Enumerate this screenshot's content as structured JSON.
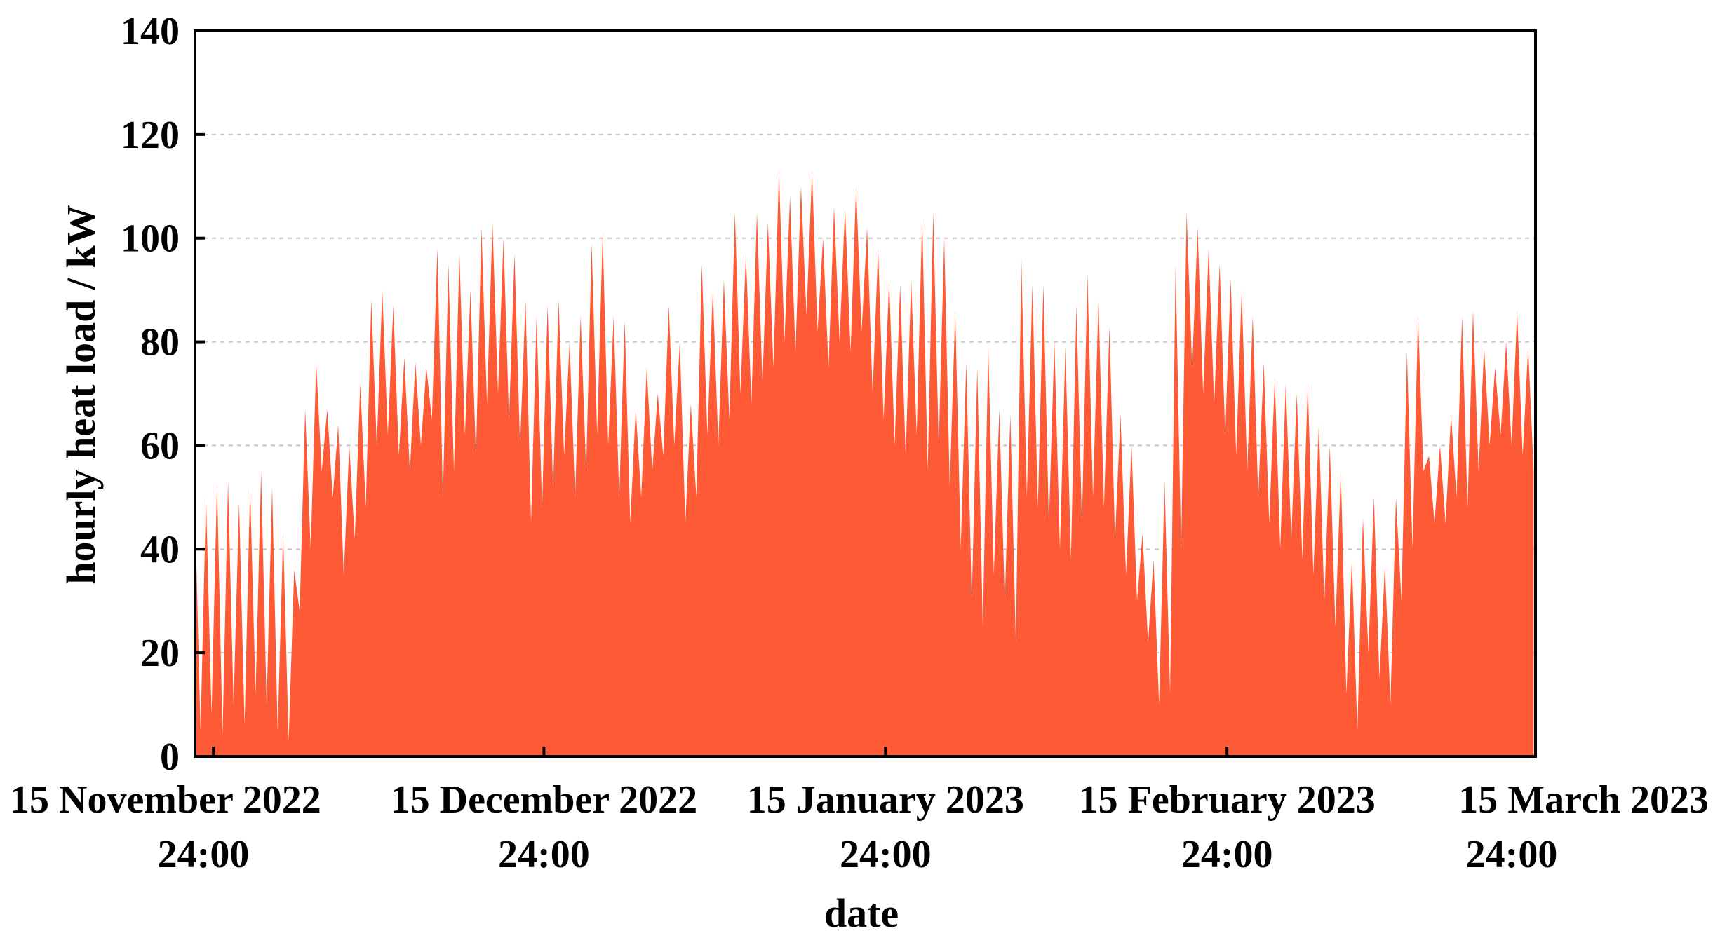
{
  "chart_data": {
    "type": "area",
    "y_label": "hourly heat load / kW",
    "x_label": "date",
    "color": "#ff5a36",
    "grid": true,
    "ylim": [
      0,
      140
    ],
    "yticks": [
      0,
      20,
      40,
      60,
      80,
      100,
      120,
      140
    ],
    "xlim": [
      "2022-11-14T08:00",
      "2023-03-16T00:00"
    ],
    "xticks": [
      {
        "value": "2022-11-16T00:00",
        "label": [
          "15 November 2022",
          "24:00"
        ]
      },
      {
        "value": "2022-12-16T00:00",
        "label": [
          "15 December 2022",
          "24:00"
        ]
      },
      {
        "value": "2023-01-16T00:00",
        "label": [
          "15 January 2023",
          "24:00"
        ]
      },
      {
        "value": "2023-02-16T00:00",
        "label": [
          "15 February 2023",
          "24:00"
        ]
      },
      {
        "value": "2023-03-16T00:00",
        "label": [
          "15 March 2023",
          "24:00"
        ]
      }
    ],
    "x": [
      "2022-11-14T08:00",
      "2022-11-14T20:00",
      "2022-11-15T08:00",
      "2022-11-15T20:00",
      "2022-11-16T08:00",
      "2022-11-16T20:00",
      "2022-11-17T08:00",
      "2022-11-17T20:00",
      "2022-11-18T08:00",
      "2022-11-18T20:00",
      "2022-11-19T08:00",
      "2022-11-19T20:00",
      "2022-11-20T08:00",
      "2022-11-20T20:00",
      "2022-11-21T08:00",
      "2022-11-21T20:00",
      "2022-11-22T08:00",
      "2022-11-22T20:00",
      "2022-11-23T08:00",
      "2022-11-23T20:00",
      "2022-11-24T08:00",
      "2022-11-24T20:00",
      "2022-11-25T08:00",
      "2022-11-25T20:00",
      "2022-11-26T08:00",
      "2022-11-26T20:00",
      "2022-11-27T08:00",
      "2022-11-27T20:00",
      "2022-11-28T08:00",
      "2022-11-28T20:00",
      "2022-11-29T08:00",
      "2022-11-29T20:00",
      "2022-11-30T08:00",
      "2022-11-30T20:00",
      "2022-12-01T08:00",
      "2022-12-01T20:00",
      "2022-12-02T08:00",
      "2022-12-02T20:00",
      "2022-12-03T08:00",
      "2022-12-03T20:00",
      "2022-12-04T08:00",
      "2022-12-04T20:00",
      "2022-12-05T08:00",
      "2022-12-05T20:00",
      "2022-12-06T08:00",
      "2022-12-06T20:00",
      "2022-12-07T08:00",
      "2022-12-07T20:00",
      "2022-12-08T08:00",
      "2022-12-08T20:00",
      "2022-12-09T08:00",
      "2022-12-09T20:00",
      "2022-12-10T08:00",
      "2022-12-10T20:00",
      "2022-12-11T08:00",
      "2022-12-11T20:00",
      "2022-12-12T08:00",
      "2022-12-12T20:00",
      "2022-12-13T08:00",
      "2022-12-13T20:00",
      "2022-12-14T08:00",
      "2022-12-14T20:00",
      "2022-12-15T08:00",
      "2022-12-15T20:00",
      "2022-12-16T08:00",
      "2022-12-16T20:00",
      "2022-12-17T08:00",
      "2022-12-17T20:00",
      "2022-12-18T08:00",
      "2022-12-18T20:00",
      "2022-12-19T08:00",
      "2022-12-19T20:00",
      "2022-12-20T08:00",
      "2022-12-20T20:00",
      "2022-12-21T08:00",
      "2022-12-21T20:00",
      "2022-12-22T08:00",
      "2022-12-22T20:00",
      "2022-12-23T08:00",
      "2022-12-23T20:00",
      "2022-12-24T08:00",
      "2022-12-24T20:00",
      "2022-12-25T08:00",
      "2022-12-25T20:00",
      "2022-12-26T08:00",
      "2022-12-26T20:00",
      "2022-12-27T08:00",
      "2022-12-27T20:00",
      "2022-12-28T08:00",
      "2022-12-28T20:00",
      "2022-12-29T08:00",
      "2022-12-29T20:00",
      "2022-12-30T08:00",
      "2022-12-30T20:00",
      "2022-12-31T08:00",
      "2022-12-31T20:00",
      "2023-01-01T08:00",
      "2023-01-01T20:00",
      "2023-01-02T08:00",
      "2023-01-02T20:00",
      "2023-01-03T08:00",
      "2023-01-03T20:00",
      "2023-01-04T08:00",
      "2023-01-04T20:00",
      "2023-01-05T08:00",
      "2023-01-05T20:00",
      "2023-01-06T08:00",
      "2023-01-06T20:00",
      "2023-01-07T08:00",
      "2023-01-07T20:00",
      "2023-01-08T08:00",
      "2023-01-08T20:00",
      "2023-01-09T08:00",
      "2023-01-09T20:00",
      "2023-01-10T08:00",
      "2023-01-10T20:00",
      "2023-01-11T08:00",
      "2023-01-11T20:00",
      "2023-01-12T08:00",
      "2023-01-12T20:00",
      "2023-01-13T08:00",
      "2023-01-13T20:00",
      "2023-01-14T08:00",
      "2023-01-14T20:00",
      "2023-01-15T08:00",
      "2023-01-15T20:00",
      "2023-01-16T08:00",
      "2023-01-16T20:00",
      "2023-01-17T08:00",
      "2023-01-17T20:00",
      "2023-01-18T08:00",
      "2023-01-18T20:00",
      "2023-01-19T08:00",
      "2023-01-19T20:00",
      "2023-01-20T08:00",
      "2023-01-20T20:00",
      "2023-01-21T08:00",
      "2023-01-21T20:00",
      "2023-01-22T08:00",
      "2023-01-22T20:00",
      "2023-01-23T08:00",
      "2023-01-23T20:00",
      "2023-01-24T08:00",
      "2023-01-24T20:00",
      "2023-01-25T08:00",
      "2023-01-25T20:00",
      "2023-01-26T08:00",
      "2023-01-26T20:00",
      "2023-01-27T08:00",
      "2023-01-27T20:00",
      "2023-01-28T08:00",
      "2023-01-28T20:00",
      "2023-01-29T08:00",
      "2023-01-29T20:00",
      "2023-01-30T08:00",
      "2023-01-30T20:00",
      "2023-01-31T08:00",
      "2023-01-31T20:00",
      "2023-02-01T08:00",
      "2023-02-01T20:00",
      "2023-02-02T08:00",
      "2023-02-02T20:00",
      "2023-02-03T08:00",
      "2023-02-03T20:00",
      "2023-02-04T08:00",
      "2023-02-04T20:00",
      "2023-02-05T08:00",
      "2023-02-05T20:00",
      "2023-02-06T08:00",
      "2023-02-06T20:00",
      "2023-02-07T08:00",
      "2023-02-07T20:00",
      "2023-02-08T08:00",
      "2023-02-08T20:00",
      "2023-02-09T08:00",
      "2023-02-09T20:00",
      "2023-02-10T08:00",
      "2023-02-10T20:00",
      "2023-02-11T08:00",
      "2023-02-11T20:00",
      "2023-02-12T08:00",
      "2023-02-12T20:00",
      "2023-02-13T08:00",
      "2023-02-13T20:00",
      "2023-02-14T08:00",
      "2023-02-14T20:00",
      "2023-02-15T08:00",
      "2023-02-15T20:00",
      "2023-02-16T08:00",
      "2023-02-16T20:00",
      "2023-02-17T08:00",
      "2023-02-17T20:00",
      "2023-02-18T08:00",
      "2023-02-18T20:00",
      "2023-02-19T08:00",
      "2023-02-19T20:00",
      "2023-02-20T08:00",
      "2023-02-20T20:00",
      "2023-02-21T08:00",
      "2023-02-21T20:00",
      "2023-02-22T08:00",
      "2023-02-22T20:00",
      "2023-02-23T08:00",
      "2023-02-23T20:00",
      "2023-02-24T08:00",
      "2023-02-24T20:00",
      "2023-02-25T08:00",
      "2023-02-25T20:00",
      "2023-02-26T08:00",
      "2023-02-26T20:00",
      "2023-02-27T08:00",
      "2023-02-27T20:00",
      "2023-02-28T08:00",
      "2023-02-28T20:00",
      "2023-03-01T08:00",
      "2023-03-01T20:00",
      "2023-03-02T08:00",
      "2023-03-02T20:00",
      "2023-03-03T08:00",
      "2023-03-03T20:00",
      "2023-03-04T08:00",
      "2023-03-04T20:00",
      "2023-03-05T08:00",
      "2023-03-05T20:00",
      "2023-03-06T08:00",
      "2023-03-06T20:00",
      "2023-03-07T08:00",
      "2023-03-07T20:00",
      "2023-03-08T08:00",
      "2023-03-08T20:00",
      "2023-03-09T08:00",
      "2023-03-09T20:00",
      "2023-03-10T08:00",
      "2023-03-10T20:00",
      "2023-03-11T08:00",
      "2023-03-11T20:00",
      "2023-03-12T08:00",
      "2023-03-12T20:00",
      "2023-03-13T08:00",
      "2023-03-13T20:00",
      "2023-03-14T08:00",
      "2023-03-14T20:00",
      "2023-03-15T08:00",
      "2023-03-15T20:00"
    ],
    "values": [
      48,
      5,
      50,
      8,
      53,
      4,
      53,
      10,
      49,
      6,
      52,
      12,
      55,
      10,
      52,
      5,
      43,
      3,
      36,
      28,
      67,
      40,
      76,
      55,
      67,
      50,
      64,
      35,
      60,
      42,
      72,
      48,
      88,
      60,
      90,
      62,
      87,
      58,
      77,
      55,
      76,
      60,
      75,
      65,
      98,
      50,
      95,
      55,
      97,
      62,
      90,
      58,
      102,
      68,
      103,
      70,
      100,
      65,
      97,
      60,
      88,
      45,
      85,
      48,
      87,
      52,
      88,
      58,
      80,
      50,
      85,
      55,
      99,
      62,
      101,
      60,
      85,
      50,
      84,
      45,
      67,
      50,
      75,
      55,
      70,
      58,
      87,
      60,
      80,
      45,
      68,
      50,
      95,
      62,
      90,
      60,
      92,
      65,
      105,
      70,
      97,
      68,
      105,
      72,
      103,
      75,
      113,
      80,
      108,
      78,
      110,
      85,
      113,
      82,
      100,
      75,
      106,
      80,
      106,
      78,
      110,
      82,
      102,
      70,
      98,
      65,
      92,
      60,
      91,
      58,
      92,
      62,
      104,
      55,
      105,
      60,
      100,
      52,
      86,
      40,
      76,
      30,
      75,
      25,
      79,
      35,
      67,
      30,
      66,
      22,
      96,
      50,
      91,
      48,
      91,
      45,
      80,
      40,
      79,
      38,
      87,
      45,
      93,
      50,
      88,
      48,
      83,
      42,
      66,
      35,
      60,
      30,
      43,
      22,
      38,
      10,
      53,
      12,
      95,
      40,
      105,
      75,
      102,
      70,
      98,
      68,
      95,
      62,
      92,
      58,
      90,
      55,
      85,
      50,
      76,
      45,
      73,
      40,
      72,
      42,
      70,
      38,
      72,
      35,
      64,
      30,
      60,
      25,
      55,
      12,
      38,
      5,
      46,
      20,
      50,
      15,
      37,
      10,
      50,
      30,
      78,
      40,
      85,
      55,
      58,
      45,
      60,
      45,
      66,
      50,
      85,
      48,
      86,
      55,
      79,
      60,
      75,
      62,
      80,
      60,
      86,
      58,
      79,
      55
    ]
  }
}
